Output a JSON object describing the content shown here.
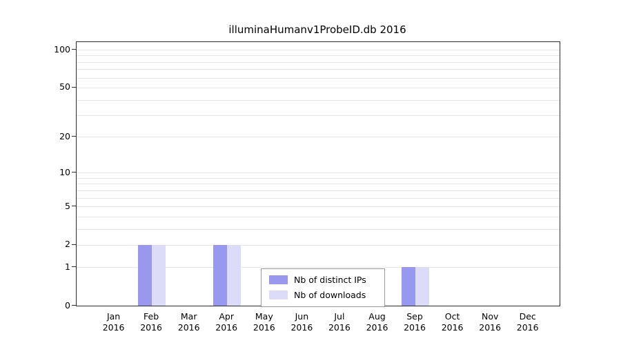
{
  "chart_data": {
    "type": "bar",
    "title": "illuminaHumanv1ProbeID.db 2016",
    "scale": "log10(1+x)",
    "grid": true,
    "legend_position": "inside-bottom-center",
    "ylim": [
      0,
      100
    ],
    "y_ticks": [
      0,
      1,
      2,
      5,
      10,
      20,
      50,
      100
    ],
    "minor_gridlines": [
      1,
      2,
      3,
      4,
      5,
      6,
      7,
      8,
      9,
      10,
      20,
      30,
      40,
      50,
      60,
      70,
      80,
      90,
      100
    ],
    "categories": [
      "Jan 2016",
      "Feb 2016",
      "Mar 2016",
      "Apr 2016",
      "May 2016",
      "Jun 2016",
      "Jul 2016",
      "Aug 2016",
      "Sep 2016",
      "Oct 2016",
      "Nov 2016",
      "Dec 2016"
    ],
    "series": [
      {
        "key": "distinct-ips",
        "name": "Nb of distinct IPs",
        "color": "#9898ee",
        "values": [
          0,
          2,
          0,
          2,
          0,
          0,
          0,
          0,
          1,
          0,
          0,
          0
        ]
      },
      {
        "key": "downloads",
        "name": "Nb of downloads",
        "color": "#dcdcf8",
        "values": [
          0,
          2,
          0,
          2,
          0,
          0,
          0,
          0,
          1,
          0,
          0,
          0
        ]
      }
    ]
  }
}
